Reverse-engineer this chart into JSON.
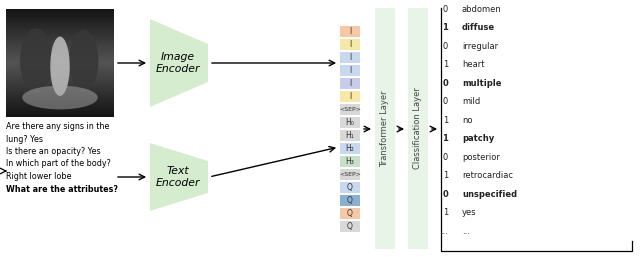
{
  "bg_color": "#ffffff",
  "row_colors": [
    "#f5c9a8",
    "#f5e8a8",
    "#c8d8ee",
    "#c8d8ee",
    "#c8cce8",
    "#f5e8a8",
    "#d8d8d8",
    "#d8d8d8",
    "#d8d8d8",
    "#c8d8ee",
    "#c8e0c8",
    "#d8d8d8",
    "#c8d8ee",
    "#8ab0d0",
    "#f5c9a8",
    "#d8d8d8"
  ],
  "row_labels": [
    "I",
    "I",
    "I",
    "I",
    "I",
    "I",
    "<SEP>",
    "H₀",
    "H₁",
    "H₂",
    "H₃",
    "<SEP>",
    "Q",
    "Q",
    "Q",
    "Q"
  ],
  "output_labels": [
    "abdomen",
    "diffuse",
    "irregular",
    "heart",
    "multiple",
    "mild",
    "no",
    "patchy",
    "posterior",
    "retrocardiac",
    "unspecified",
    "yes",
    "..."
  ],
  "output_values": [
    "0",
    "1",
    "0",
    "1",
    "0",
    "0",
    "1",
    "1",
    "0",
    "1",
    "0",
    "1",
    "..."
  ],
  "output_bold": [
    false,
    true,
    false,
    false,
    true,
    false,
    false,
    true,
    false,
    false,
    true,
    false,
    false
  ],
  "encoder_fill": "#c8e6c0",
  "transformer_fill": "#daeeda",
  "classification_fill": "#daeeda",
  "image_encoder_label": "Image\nEncoder",
  "text_encoder_label": "Text\nEncoder",
  "transformer_label": "Transformer Layer",
  "classification_label": "Classification Layer",
  "text_questions": [
    "Are there any signs in the",
    "lung? Yes",
    "Is there an opacity? Yes",
    "In which part of the body?",
    "Right lower lobe",
    "What are the attributes?"
  ]
}
